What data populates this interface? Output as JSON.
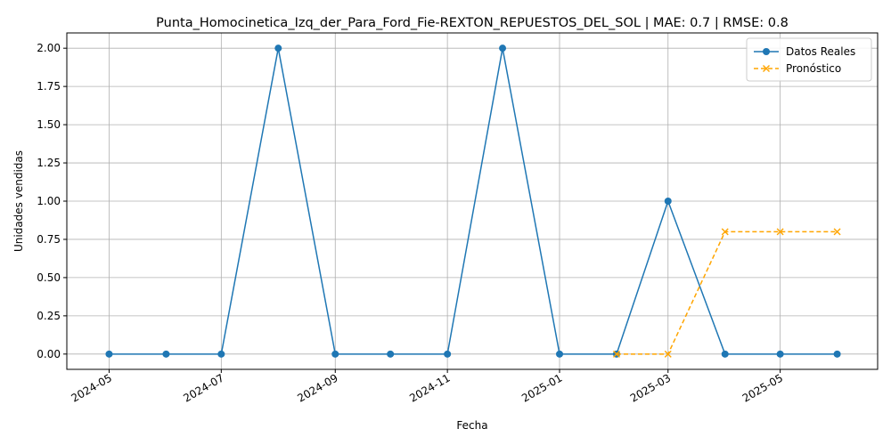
{
  "chart_data": {
    "type": "line",
    "title": "Punta_Homocinetica_Izq_der_Para_Ford_Fie-REXTON_REPUESTOS_DEL_SOL | MAE: 0.7 | RMSE: 0.8",
    "xlabel": "Fecha",
    "ylabel": "Unidades vendidas",
    "xlim": [
      "2024-04-08",
      "2025-06-23"
    ],
    "ylim": [
      -0.1,
      2.1
    ],
    "x_ticks": [
      "2024-05-01",
      "2024-07-01",
      "2024-09-01",
      "2024-11-01",
      "2025-01-01",
      "2025-03-01",
      "2025-05-01"
    ],
    "x_tick_labels": [
      "2024-05",
      "2024-07",
      "2024-09",
      "2024-11",
      "2025-01",
      "2025-03",
      "2025-05"
    ],
    "y_ticks": [
      0.0,
      0.25,
      0.5,
      0.75,
      1.0,
      1.25,
      1.5,
      1.75,
      2.0
    ],
    "y_tick_labels": [
      "0.00",
      "0.25",
      "0.50",
      "0.75",
      "1.00",
      "1.25",
      "1.50",
      "1.75",
      "2.00"
    ],
    "grid": true,
    "legend_position": "top-right",
    "series": [
      {
        "name": "Datos Reales",
        "color": "#1f77b4",
        "line_style": "solid",
        "marker": "circle",
        "x": [
          "2024-05-01",
          "2024-06-01",
          "2024-07-01",
          "2024-08-01",
          "2024-09-01",
          "2024-10-01",
          "2024-11-01",
          "2024-12-01",
          "2025-01-01",
          "2025-02-01",
          "2025-03-01",
          "2025-04-01",
          "2025-05-01",
          "2025-06-01"
        ],
        "values": [
          0,
          0,
          0,
          2,
          0,
          0,
          0,
          2,
          0,
          0,
          1,
          0,
          0,
          0
        ]
      },
      {
        "name": "Pronóstico",
        "color": "#ffa500",
        "line_style": "dashed",
        "marker": "x",
        "x": [
          "2025-02-01",
          "2025-03-01",
          "2025-04-01",
          "2025-05-01",
          "2025-06-01"
        ],
        "values": [
          0,
          0,
          0.8,
          0.8,
          0.8
        ]
      }
    ]
  }
}
